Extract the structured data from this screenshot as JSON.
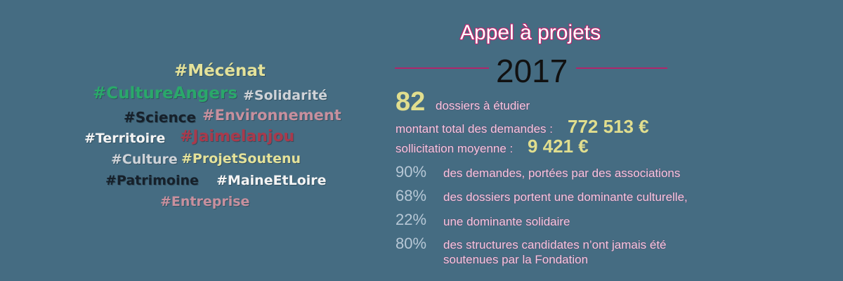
{
  "tags": [
    "#Mécénat",
    "#CultureAngers",
    "#Solidarité",
    "#Science",
    "#Environnement",
    "#Territoire",
    "#Jaimelanjou",
    "#Culture",
    "#ProjetSoutenu",
    "#Patrimoine",
    "#MaineEtLoire",
    "#Entreprise"
  ],
  "header": {
    "title": "Appel à projets",
    "year": "2017"
  },
  "dossiers": {
    "value": "82",
    "label": "dossiers à étudier"
  },
  "total": {
    "label": "montant total des demandes :",
    "value": "772 513 €"
  },
  "moyenne": {
    "label": "sollicitation moyenne :",
    "value": "9 421 €"
  },
  "stats": [
    {
      "pct": "90%",
      "text": "des demandes, portées par des associations"
    },
    {
      "pct": "68%",
      "text": "des dossiers portent une dominante culturelle,"
    },
    {
      "pct": "22%",
      "text": "une dominante solidaire"
    },
    {
      "pct": "80%",
      "text": "des structures candidates n’ont jamais été soutenues par la Fondation"
    }
  ],
  "colors": {
    "background": "#456c82",
    "accent_pink": "#c0246e",
    "highlight_yellow": "#e1de8e"
  }
}
